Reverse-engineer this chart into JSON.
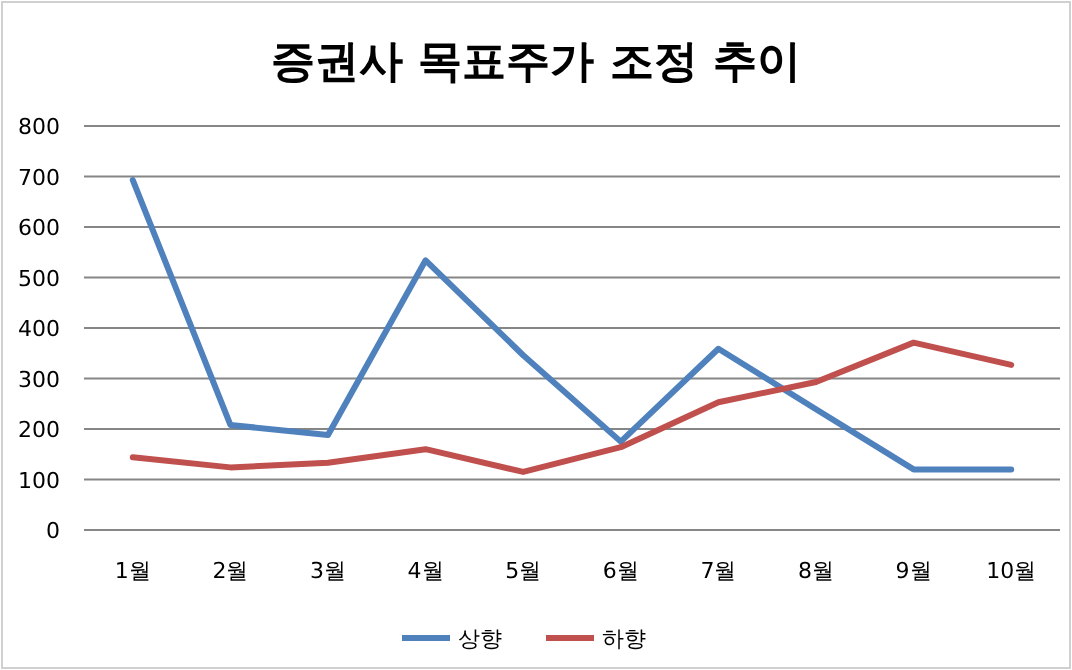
{
  "chart_data": {
    "type": "line",
    "title": "증권사 목표주가 조정 추이",
    "categories": [
      "1월",
      "2월",
      "3월",
      "4월",
      "5월",
      "6월",
      "7월",
      "8월",
      "9월",
      "10월"
    ],
    "series": [
      {
        "name": "상향",
        "color": "#4f81bd",
        "values": [
          693,
          208,
          188,
          534,
          346,
          175,
          359,
          239,
          120,
          120
        ]
      },
      {
        "name": "하향",
        "color": "#c0504d",
        "values": [
          144,
          124,
          133,
          160,
          115,
          164,
          253,
          293,
          371,
          327
        ]
      }
    ],
    "ylim": [
      0,
      800
    ],
    "yticks": [
      0,
      100,
      200,
      300,
      400,
      500,
      600,
      700,
      800
    ],
    "grid": "y",
    "legend": "bottom",
    "marker": "none",
    "line_style": "solid"
  }
}
